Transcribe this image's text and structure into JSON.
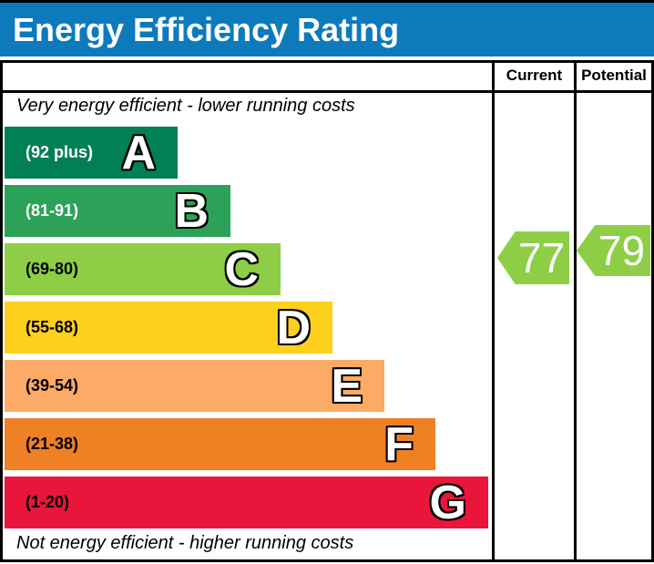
{
  "title": "Energy Efficiency Rating",
  "colors": {
    "titlebar_bg": "#0d7abc",
    "title_text": "#ffffff",
    "border": "#000000"
  },
  "chart_data": {
    "type": "bar",
    "title": "Energy Efficiency Rating",
    "note_top": "Very energy efficient - lower running costs",
    "note_bottom": "Not energy efficient - higher running costs",
    "columns": [
      "Current",
      "Potential"
    ],
    "bands": [
      {
        "letter": "A",
        "range": "(92 plus)",
        "color": "#008054",
        "text_color": "#ffffff"
      },
      {
        "letter": "B",
        "range": "(81-91)",
        "color": "#2ba258",
        "text_color": "#ffffff"
      },
      {
        "letter": "C",
        "range": "(69-80)",
        "color": "#8dce46",
        "text_color": "#000000"
      },
      {
        "letter": "D",
        "range": "(55-68)",
        "color": "#fdd01e",
        "text_color": "#000000"
      },
      {
        "letter": "E",
        "range": "(39-54)",
        "color": "#fcaa65",
        "text_color": "#000000"
      },
      {
        "letter": "F",
        "range": "(21-38)",
        "color": "#ef8023",
        "text_color": "#000000"
      },
      {
        "letter": "G",
        "range": "(1-20)",
        "color": "#e9153b",
        "text_color": "#000000"
      }
    ],
    "current": {
      "value": "77",
      "band": "C",
      "color": "#8dce46"
    },
    "potential": {
      "value": "79",
      "band": "C",
      "color": "#8dce46"
    }
  }
}
